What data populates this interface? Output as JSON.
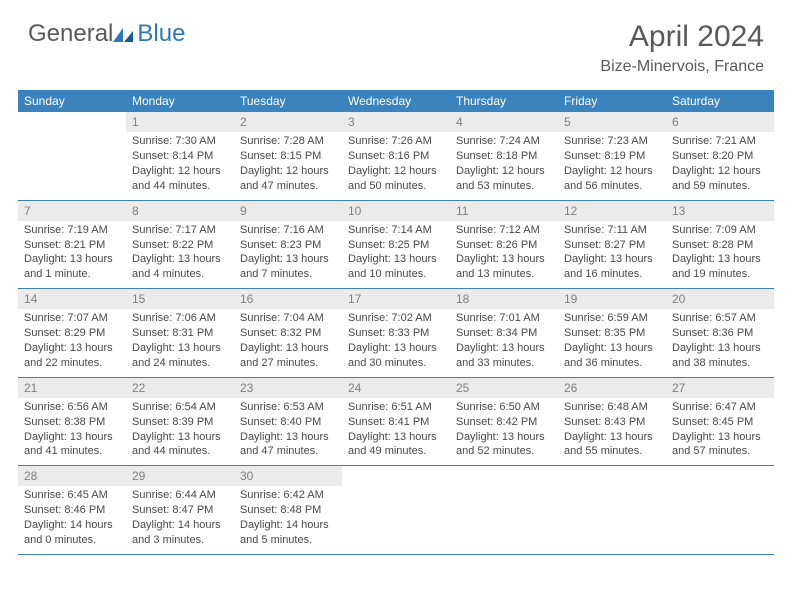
{
  "logo": {
    "general": "General",
    "blue": "Blue"
  },
  "title": "April 2024",
  "location": "Bize-Minervois, France",
  "colors": {
    "header_bg": "#3b83bd",
    "daynum_bg": "#ebebeb",
    "text": "#4a4a4a",
    "border": "#3b83bd"
  },
  "weekdays": [
    "Sunday",
    "Monday",
    "Tuesday",
    "Wednesday",
    "Thursday",
    "Friday",
    "Saturday"
  ],
  "weeks": [
    [
      null,
      {
        "n": "1",
        "sr": "Sunrise: 7:30 AM",
        "ss": "Sunset: 8:14 PM",
        "dl": "Daylight: 12 hours and 44 minutes."
      },
      {
        "n": "2",
        "sr": "Sunrise: 7:28 AM",
        "ss": "Sunset: 8:15 PM",
        "dl": "Daylight: 12 hours and 47 minutes."
      },
      {
        "n": "3",
        "sr": "Sunrise: 7:26 AM",
        "ss": "Sunset: 8:16 PM",
        "dl": "Daylight: 12 hours and 50 minutes."
      },
      {
        "n": "4",
        "sr": "Sunrise: 7:24 AM",
        "ss": "Sunset: 8:18 PM",
        "dl": "Daylight: 12 hours and 53 minutes."
      },
      {
        "n": "5",
        "sr": "Sunrise: 7:23 AM",
        "ss": "Sunset: 8:19 PM",
        "dl": "Daylight: 12 hours and 56 minutes."
      },
      {
        "n": "6",
        "sr": "Sunrise: 7:21 AM",
        "ss": "Sunset: 8:20 PM",
        "dl": "Daylight: 12 hours and 59 minutes."
      }
    ],
    [
      {
        "n": "7",
        "sr": "Sunrise: 7:19 AM",
        "ss": "Sunset: 8:21 PM",
        "dl": "Daylight: 13 hours and 1 minute."
      },
      {
        "n": "8",
        "sr": "Sunrise: 7:17 AM",
        "ss": "Sunset: 8:22 PM",
        "dl": "Daylight: 13 hours and 4 minutes."
      },
      {
        "n": "9",
        "sr": "Sunrise: 7:16 AM",
        "ss": "Sunset: 8:23 PM",
        "dl": "Daylight: 13 hours and 7 minutes."
      },
      {
        "n": "10",
        "sr": "Sunrise: 7:14 AM",
        "ss": "Sunset: 8:25 PM",
        "dl": "Daylight: 13 hours and 10 minutes."
      },
      {
        "n": "11",
        "sr": "Sunrise: 7:12 AM",
        "ss": "Sunset: 8:26 PM",
        "dl": "Daylight: 13 hours and 13 minutes."
      },
      {
        "n": "12",
        "sr": "Sunrise: 7:11 AM",
        "ss": "Sunset: 8:27 PM",
        "dl": "Daylight: 13 hours and 16 minutes."
      },
      {
        "n": "13",
        "sr": "Sunrise: 7:09 AM",
        "ss": "Sunset: 8:28 PM",
        "dl": "Daylight: 13 hours and 19 minutes."
      }
    ],
    [
      {
        "n": "14",
        "sr": "Sunrise: 7:07 AM",
        "ss": "Sunset: 8:29 PM",
        "dl": "Daylight: 13 hours and 22 minutes."
      },
      {
        "n": "15",
        "sr": "Sunrise: 7:06 AM",
        "ss": "Sunset: 8:31 PM",
        "dl": "Daylight: 13 hours and 24 minutes."
      },
      {
        "n": "16",
        "sr": "Sunrise: 7:04 AM",
        "ss": "Sunset: 8:32 PM",
        "dl": "Daylight: 13 hours and 27 minutes."
      },
      {
        "n": "17",
        "sr": "Sunrise: 7:02 AM",
        "ss": "Sunset: 8:33 PM",
        "dl": "Daylight: 13 hours and 30 minutes."
      },
      {
        "n": "18",
        "sr": "Sunrise: 7:01 AM",
        "ss": "Sunset: 8:34 PM",
        "dl": "Daylight: 13 hours and 33 minutes."
      },
      {
        "n": "19",
        "sr": "Sunrise: 6:59 AM",
        "ss": "Sunset: 8:35 PM",
        "dl": "Daylight: 13 hours and 36 minutes."
      },
      {
        "n": "20",
        "sr": "Sunrise: 6:57 AM",
        "ss": "Sunset: 8:36 PM",
        "dl": "Daylight: 13 hours and 38 minutes."
      }
    ],
    [
      {
        "n": "21",
        "sr": "Sunrise: 6:56 AM",
        "ss": "Sunset: 8:38 PM",
        "dl": "Daylight: 13 hours and 41 minutes."
      },
      {
        "n": "22",
        "sr": "Sunrise: 6:54 AM",
        "ss": "Sunset: 8:39 PM",
        "dl": "Daylight: 13 hours and 44 minutes."
      },
      {
        "n": "23",
        "sr": "Sunrise: 6:53 AM",
        "ss": "Sunset: 8:40 PM",
        "dl": "Daylight: 13 hours and 47 minutes."
      },
      {
        "n": "24",
        "sr": "Sunrise: 6:51 AM",
        "ss": "Sunset: 8:41 PM",
        "dl": "Daylight: 13 hours and 49 minutes."
      },
      {
        "n": "25",
        "sr": "Sunrise: 6:50 AM",
        "ss": "Sunset: 8:42 PM",
        "dl": "Daylight: 13 hours and 52 minutes."
      },
      {
        "n": "26",
        "sr": "Sunrise: 6:48 AM",
        "ss": "Sunset: 8:43 PM",
        "dl": "Daylight: 13 hours and 55 minutes."
      },
      {
        "n": "27",
        "sr": "Sunrise: 6:47 AM",
        "ss": "Sunset: 8:45 PM",
        "dl": "Daylight: 13 hours and 57 minutes."
      }
    ],
    [
      {
        "n": "28",
        "sr": "Sunrise: 6:45 AM",
        "ss": "Sunset: 8:46 PM",
        "dl": "Daylight: 14 hours and 0 minutes."
      },
      {
        "n": "29",
        "sr": "Sunrise: 6:44 AM",
        "ss": "Sunset: 8:47 PM",
        "dl": "Daylight: 14 hours and 3 minutes."
      },
      {
        "n": "30",
        "sr": "Sunrise: 6:42 AM",
        "ss": "Sunset: 8:48 PM",
        "dl": "Daylight: 14 hours and 5 minutes."
      },
      null,
      null,
      null,
      null
    ]
  ]
}
